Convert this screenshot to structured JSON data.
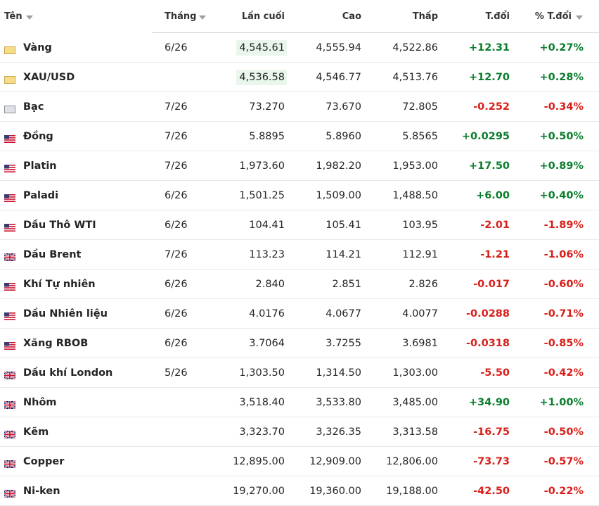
{
  "table": {
    "header": [
      "Tên",
      "Tháng",
      "Lần cuối",
      "Cao",
      "Thấp",
      "T.đổi",
      "% T.đổi"
    ],
    "rows": [
      [
        "Vàng",
        "6/26",
        "4,545.61",
        "4,555.94",
        "4,522.86",
        "+12.31",
        "+0.27%"
      ],
      [
        "XAU/USD",
        null,
        "4,536.58",
        "4,546.77",
        "4,513.76",
        "+12.70",
        "+0.28%"
      ],
      [
        "Bạc",
        "7/26",
        "73.270",
        "73.670",
        "72.805",
        "-0.252",
        "-0.34%"
      ],
      [
        "Đồng",
        "7/26",
        "5.8895",
        "5.8960",
        "5.8565",
        "+0.0295",
        "+0.50%"
      ],
      [
        "Platin",
        "7/26",
        "1,973.60",
        "1,982.20",
        "1,953.00",
        "+17.50",
        "+0.89%"
      ],
      [
        "Paladi",
        "6/26",
        "1,501.25",
        "1,509.00",
        "1,488.50",
        "+6.00",
        "+0.40%"
      ],
      [
        "Dầu Thô WTI",
        "6/26",
        "104.41",
        "105.41",
        "103.95",
        "-2.01",
        "-1.89%"
      ],
      [
        "Dầu Brent",
        "7/26",
        "113.23",
        "114.21",
        "112.91",
        "-1.21",
        "-1.06%"
      ],
      [
        "Khí Tự nhiên",
        "6/26",
        "2.840",
        "2.851",
        "2.826",
        "-0.017",
        "-0.60%"
      ],
      [
        "Dầu Nhiên liệu",
        "6/26",
        "4.0176",
        "4.0677",
        "4.0077",
        "-0.0288",
        "-0.71%"
      ],
      [
        "Xăng RBOB",
        "6/26",
        "3.7064",
        "3.7255",
        "3.6981",
        "-0.0318",
        "-0.85%"
      ],
      [
        "Dầu khí London",
        "5/26",
        "1,303.50",
        "1,314.50",
        "1,303.00",
        "-5.50",
        "-0.42%"
      ],
      [
        "Nhôm",
        null,
        "3,518.40",
        "3,533.80",
        "3,485.00",
        "+34.90",
        "+1.00%"
      ],
      [
        "Kẽm",
        null,
        "3,323.70",
        "3,326.35",
        "3,313.58",
        "-16.75",
        "-0.50%"
      ],
      [
        "Copper",
        null,
        "12,895.00",
        "12,909.00",
        "12,806.00",
        "-73.73",
        "-0.57%"
      ],
      [
        "Ni-ken",
        null,
        "19,270.00",
        "19,360.00",
        "19,188.00",
        "-42.50",
        "-0.22%"
      ]
    ]
  }
}
